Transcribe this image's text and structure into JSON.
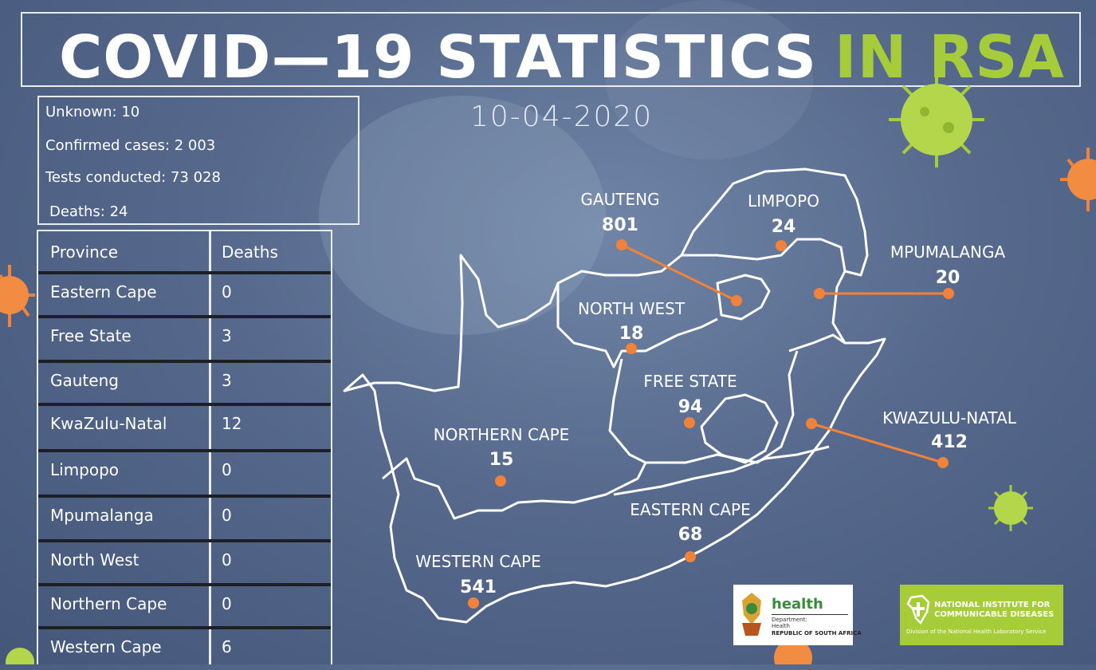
{
  "title": {
    "part1": "COVID—19 STATISTICS",
    "part2": "IN RSA"
  },
  "date": "10-04-2020",
  "summary": {
    "unknown": "Unknown: 10",
    "confirmed": "Confirmed cases: 2 003",
    "tests": "Tests conducted: 73 028",
    "deaths": "Deaths: 24"
  },
  "deaths_table": {
    "headers": [
      "Province",
      "Deaths"
    ],
    "rows": [
      {
        "province": "Eastern Cape",
        "deaths": "0"
      },
      {
        "province": "Free State",
        "deaths": "3"
      },
      {
        "province": "Gauteng",
        "deaths": "3"
      },
      {
        "province": "KwaZulu-Natal",
        "deaths": "12"
      },
      {
        "province": "Limpopo",
        "deaths": "0"
      },
      {
        "province": "Mpumalanga",
        "deaths": "0"
      },
      {
        "province": "North West",
        "deaths": "0"
      },
      {
        "province": "Northern Cape",
        "deaths": "0"
      },
      {
        "province": "Western Cape",
        "deaths": "6"
      }
    ]
  },
  "provinces": [
    {
      "name": "GAUTENG",
      "cases": "801"
    },
    {
      "name": "LIMPOPO",
      "cases": "24"
    },
    {
      "name": "MPUMALANGA",
      "cases": "20"
    },
    {
      "name": "NORTH WEST",
      "cases": "18"
    },
    {
      "name": "FREE STATE",
      "cases": "94"
    },
    {
      "name": "KWAZULU-NATAL",
      "cases": "412"
    },
    {
      "name": "NORTHERN CAPE",
      "cases": "15"
    },
    {
      "name": "EASTERN CAPE",
      "cases": "68"
    },
    {
      "name": "WESTERN CAPE",
      "cases": "541"
    }
  ],
  "logos": {
    "health": {
      "title": "health",
      "dept": "Department:\nHealth",
      "country": "REPUBLIC OF SOUTH AFRICA"
    },
    "nicd": {
      "title": "NATIONAL INSTITUTE FOR\nCOMMUNICABLE DISEASES",
      "subtitle": "Division of the National Health Laboratory Service"
    }
  },
  "colors": {
    "accent_green": "#a6cc39",
    "marker_orange": "#f0823a",
    "background": "#56698c"
  }
}
